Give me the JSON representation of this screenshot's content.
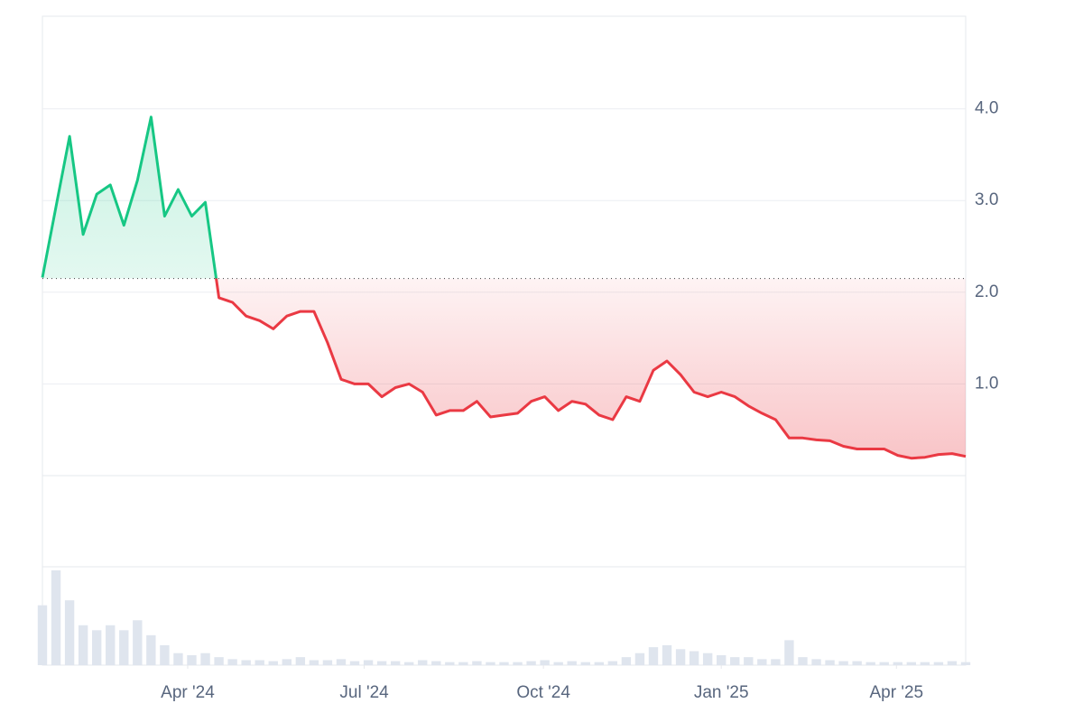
{
  "chart_data": {
    "type": "line",
    "values": [
      2.16,
      2.93,
      3.7,
      2.63,
      3.07,
      3.17,
      2.73,
      3.22,
      3.91,
      2.83,
      3.12,
      2.83,
      2.98,
      1.94,
      1.89,
      1.74,
      1.69,
      1.6,
      1.74,
      1.79,
      1.79,
      1.45,
      1.05,
      1.0,
      1.0,
      0.86,
      0.96,
      1.0,
      0.91,
      0.66,
      0.71,
      0.71,
      0.81,
      0.64,
      0.66,
      0.68,
      0.81,
      0.86,
      0.71,
      0.81,
      0.78,
      0.66,
      0.61,
      0.86,
      0.81,
      1.15,
      1.25,
      1.1,
      0.91,
      0.86,
      0.91,
      0.86,
      0.76,
      0.68,
      0.61,
      0.41,
      0.41,
      0.39,
      0.38,
      0.32,
      0.29,
      0.29,
      0.29,
      0.22,
      0.19,
      0.2,
      0.23,
      0.24,
      0.21
    ],
    "volume": [
      60,
      95,
      65,
      40,
      35,
      40,
      35,
      45,
      30,
      20,
      12,
      10,
      12,
      8,
      6,
      5,
      5,
      4,
      6,
      8,
      5,
      5,
      6,
      4,
      5,
      4,
      4,
      3,
      5,
      4,
      3,
      3,
      4,
      3,
      3,
      3,
      4,
      5,
      3,
      4,
      3,
      3,
      4,
      8,
      12,
      18,
      20,
      16,
      14,
      12,
      10,
      8,
      8,
      6,
      6,
      25,
      8,
      6,
      5,
      4,
      4,
      3,
      3,
      3,
      3,
      3,
      3,
      4,
      3
    ],
    "baseline": 2.15,
    "up_color": "#16c784",
    "down_color": "#ea3943",
    "volume_color": "#dfe5ee",
    "ylim": [
      0,
      5
    ],
    "yticks": [
      {
        "value": 1,
        "label": "1.0"
      },
      {
        "value": 2,
        "label": "2.0"
      },
      {
        "value": 3,
        "label": "3.0"
      },
      {
        "value": 4,
        "label": "4.0"
      }
    ],
    "xlim": [
      0,
      68
    ],
    "xticks": [
      {
        "value": 10.7,
        "label": "Apr '24"
      },
      {
        "value": 23.7,
        "label": "Jul '24"
      },
      {
        "value": 36.9,
        "label": "Oct '24"
      },
      {
        "value": 50,
        "label": "Jan '25"
      },
      {
        "value": 62.9,
        "label": "Apr '25"
      }
    ],
    "grid": true
  }
}
